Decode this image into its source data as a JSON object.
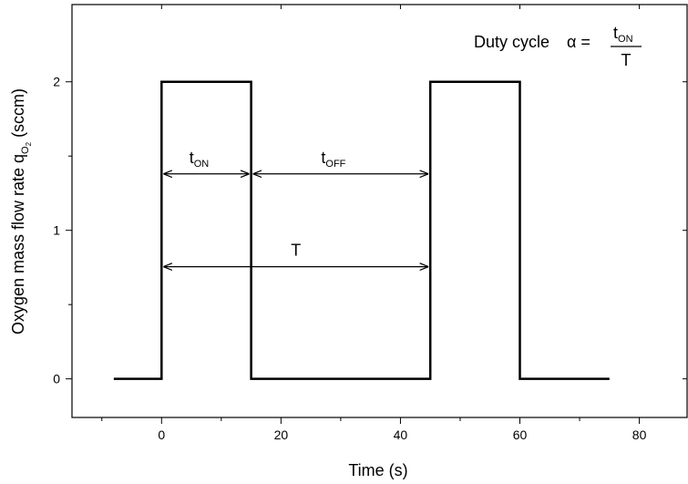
{
  "chart_data": {
    "type": "line",
    "x": [
      -8,
      0,
      0,
      15,
      15,
      45,
      45,
      60,
      60,
      75
    ],
    "series": [
      {
        "color": "#000000",
        "values": [
          0,
          0,
          2,
          2,
          0,
          0,
          2,
          2,
          0,
          0
        ]
      }
    ],
    "xlim": [
      -15,
      88
    ],
    "ylim": [
      -0.26,
      2.52
    ],
    "xticks": [
      0,
      20,
      40,
      60,
      80
    ],
    "xminor": [
      -10,
      10,
      30,
      50,
      70
    ],
    "yticks": [
      0,
      1,
      2
    ],
    "yminor": [
      0.5,
      1.5
    ],
    "x_label": "Time (s)",
    "y_label": {
      "main": "Oxygen mass flow rate q",
      "sub": "O",
      "subsub": "2",
      "unit": " (sccm)"
    },
    "annotations": [
      {
        "t": "t",
        "sub": "ON",
        "from": 0,
        "to": 15,
        "y": 1.38
      },
      {
        "t": "t",
        "sub": "OFF",
        "from": 15,
        "to": 45,
        "y": 1.38
      },
      {
        "t": "T",
        "from": 0,
        "to": 45,
        "y": 0.755
      }
    ],
    "formula": {
      "prefix": "Duty cycle",
      "symbol": "α =",
      "num_t": "t",
      "num_sub": "ON",
      "den": "T"
    }
  }
}
